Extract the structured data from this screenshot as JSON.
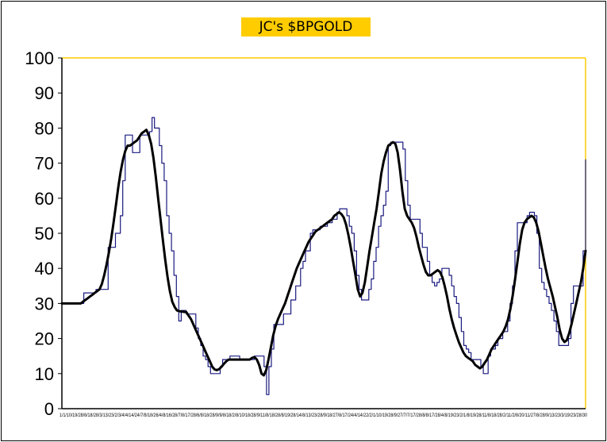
{
  "chart_data": {
    "type": "line",
    "title": "JC's $BPGOLD",
    "xlabel": "",
    "ylabel": "",
    "ylim": [
      0,
      100
    ],
    "yticks": [
      0,
      10,
      20,
      30,
      40,
      50,
      60,
      70,
      80,
      90,
      100
    ],
    "grid": false,
    "legend": "none",
    "x_tick_text": "1/1/10/19/28/8/18/28/3/13/23/2/3/4/4/14/24/7/8/18/26/4/8/16/28/7/8/17/28/6/8/18/28/9/9/8/18/2/8/10/18/28/9/11/8/18/28/8/19/28/14/8/13/23/28/9/18/27/8/17/24/4/14/22/2/1/10/19/28/9/27/7/7/17/28/8/8/17/28/4/8/19/23/2/1/8/19/28/11/8/18/28/2/11/2/8/20/11/27/8/28/9/13/23/3/19/23/28/30",
    "series": [
      {
        "color": "#1a1a80",
        "values": [
          30,
          30,
          30,
          30,
          30,
          30,
          30,
          30,
          30,
          33,
          33,
          33,
          33,
          33,
          34,
          34,
          34,
          34,
          34,
          46,
          46,
          46,
          50,
          50,
          55,
          65,
          78,
          78,
          78,
          73,
          73,
          73,
          78,
          78,
          78,
          78,
          79,
          83,
          80,
          80,
          75,
          70,
          65,
          55,
          50,
          45,
          38,
          32,
          25,
          28,
          28,
          27,
          27,
          27,
          27,
          23,
          20,
          18,
          15,
          14,
          12,
          10,
          10,
          10,
          10,
          12,
          14,
          14,
          14,
          15,
          15,
          15,
          15,
          14,
          14,
          14,
          14,
          14,
          14,
          15,
          15,
          15,
          15,
          12,
          4,
          12,
          17,
          24,
          24,
          24,
          24,
          27,
          27,
          27,
          31,
          31,
          35,
          35,
          40,
          42,
          45,
          45,
          50,
          51,
          51,
          51,
          52,
          52,
          52,
          53,
          53,
          54,
          54,
          56,
          57,
          57,
          57,
          55,
          52,
          50,
          45,
          38,
          34,
          31,
          31,
          31,
          34,
          37,
          42,
          46,
          52,
          55,
          58,
          62,
          75,
          76,
          76,
          76,
          76,
          76,
          74,
          65,
          58,
          54,
          54,
          54,
          54,
          50,
          46,
          46,
          42,
          38,
          36,
          35,
          36,
          37,
          40,
          40,
          40,
          38,
          35,
          32,
          30,
          26,
          22,
          18,
          17,
          16,
          14,
          14,
          14,
          14,
          12,
          10,
          10,
          15,
          17,
          17,
          18,
          20,
          20,
          22,
          22,
          25,
          30,
          35,
          45,
          53,
          53,
          53,
          53,
          55,
          56,
          56,
          55,
          50,
          40,
          36,
          34,
          32,
          30,
          28,
          25,
          22,
          18,
          18,
          18,
          18,
          20,
          30,
          35,
          35,
          35,
          35,
          45,
          71
        ]
      },
      {
        "color": "#000000",
        "values": [
          30,
          30,
          30,
          30,
          30,
          30,
          30,
          30,
          30,
          30.5,
          31,
          31.5,
          32,
          32.5,
          33,
          33.5,
          34,
          35.5,
          38,
          41,
          44.5,
          48.5,
          53,
          58,
          63,
          67.5,
          71,
          73.5,
          75,
          75,
          75.5,
          76,
          76.5,
          77.5,
          78.5,
          79,
          79.5,
          78,
          75.5,
          71.5,
          66,
          60,
          54,
          48,
          42.5,
          37.5,
          33.5,
          30.5,
          29,
          28,
          27.8,
          27.7,
          27.6,
          27.5,
          26.5,
          25.5,
          24,
          22.5,
          21,
          19.5,
          18,
          16.5,
          15,
          13.5,
          12,
          11.2,
          11,
          11.3,
          12,
          12.8,
          13.5,
          14,
          14,
          14,
          14,
          14,
          14,
          14,
          14,
          14,
          14,
          14.5,
          14.7,
          14,
          12.5,
          10,
          9.5,
          11,
          14,
          17.5,
          21,
          23.5,
          25.5,
          27,
          28.5,
          30,
          32,
          34,
          36,
          38,
          40,
          41.5,
          43,
          44.5,
          46,
          47.5,
          48.5,
          49.5,
          50.5,
          51,
          51.5,
          52,
          52.5,
          53,
          53.5,
          54,
          55,
          55.5,
          56,
          55.5,
          54.5,
          52.5,
          49.5,
          46,
          42,
          38,
          34,
          32,
          33,
          36,
          40.5,
          45,
          49,
          53,
          57,
          62,
          67,
          70.5,
          73,
          75,
          75.5,
          76,
          75.5,
          73,
          68,
          62,
          57,
          55,
          54,
          53,
          51.5,
          49,
          46,
          43.5,
          41,
          39,
          38,
          38,
          38.5,
          39,
          39.5,
          39,
          37.5,
          35,
          32,
          28.5,
          25.5,
          23,
          21,
          19,
          17.5,
          16,
          15,
          14.5,
          14,
          13.5,
          12.5,
          12,
          11.5,
          12,
          13,
          14,
          15.5,
          17,
          18,
          19,
          20,
          21,
          22,
          23.5,
          25.5,
          28.5,
          32.5,
          37,
          42,
          47,
          51,
          53,
          54,
          54.5,
          55,
          54.5,
          53,
          50.5,
          47,
          43.5,
          40,
          37,
          34.5,
          32,
          29,
          26,
          22.5,
          20,
          19,
          19.5,
          21.5,
          24,
          27,
          30,
          33,
          36,
          40,
          45
        ]
      }
    ]
  }
}
